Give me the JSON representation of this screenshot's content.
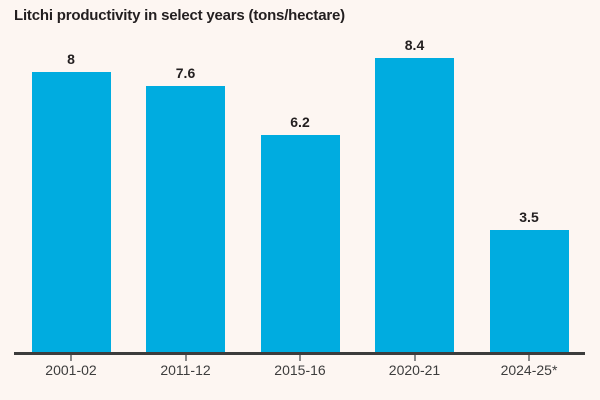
{
  "page": {
    "background_color": "#fdf6f2"
  },
  "chart_data": {
    "type": "bar",
    "title": "Litchi productivity in select years (tons/hectare)",
    "xlabel": "",
    "ylabel": "",
    "categories": [
      "2001-02",
      "2011-12",
      "2015-16",
      "2020-21",
      "2024-25*"
    ],
    "values": [
      8,
      7.6,
      6.2,
      8.4,
      3.5
    ],
    "value_labels": [
      "8",
      "7.6",
      "6.2",
      "8.4",
      "3.5"
    ],
    "ylim": [
      0,
      10
    ],
    "grid": false,
    "legend": "none",
    "bar_color": "#00ace0",
    "axis_color": "#3c3c3c",
    "tick_color": "#8a8a8a",
    "text_color": "#231f20",
    "category_label_color": "#3d3d3d"
  }
}
